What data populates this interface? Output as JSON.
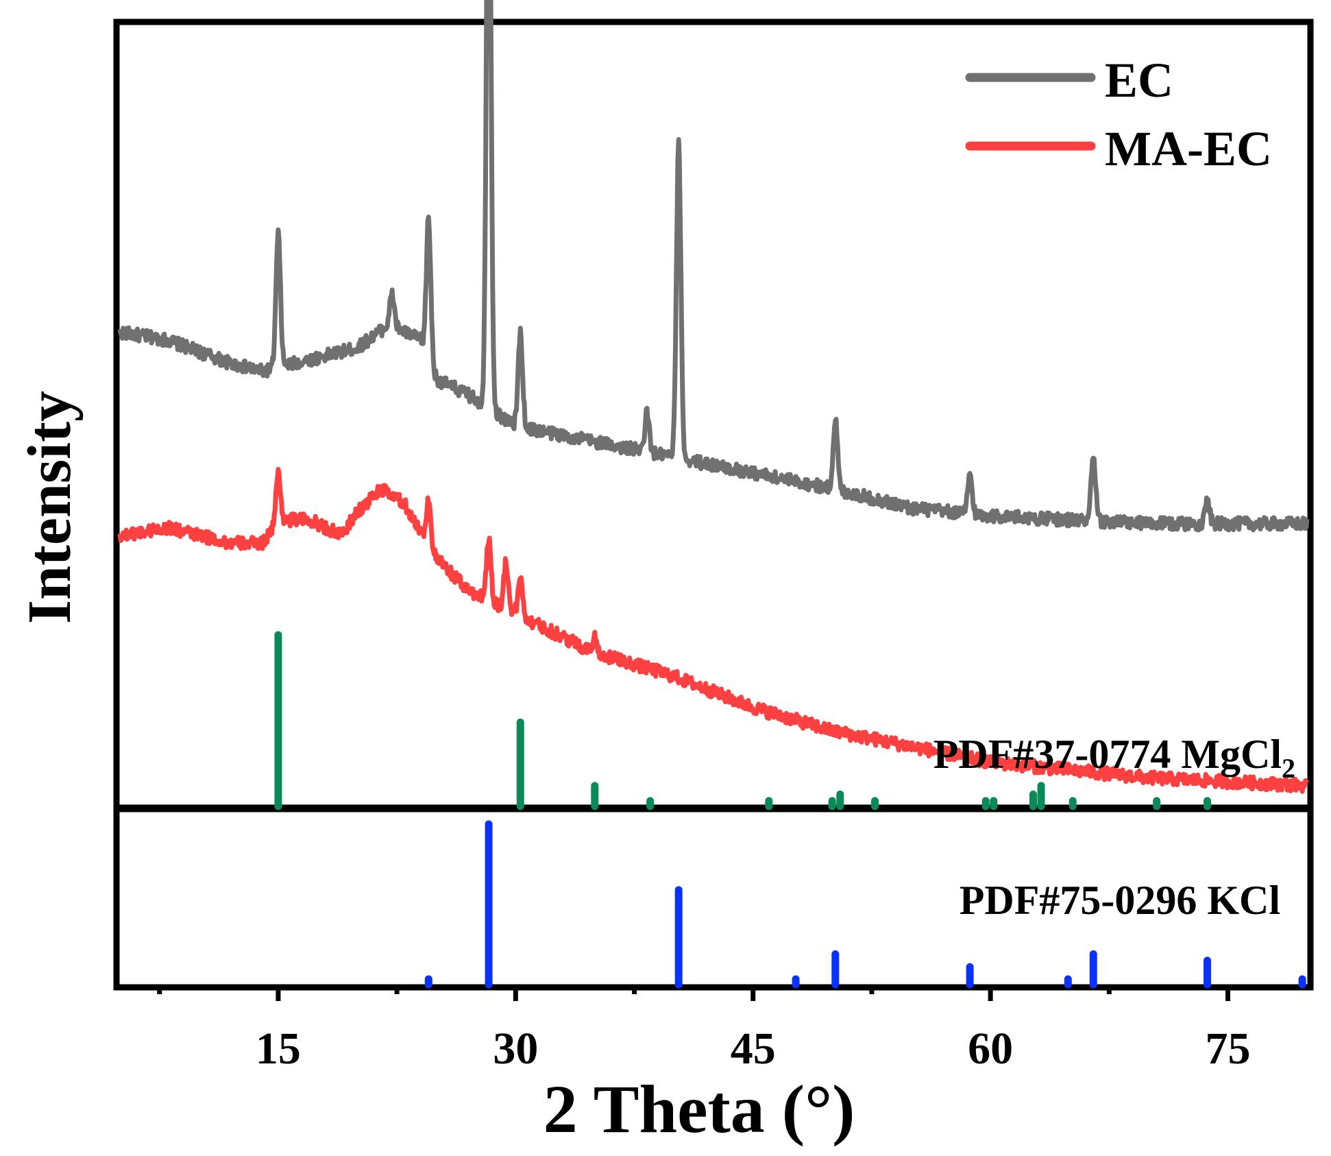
{
  "chart_data": {
    "type": "line",
    "title": "",
    "xlabel": "2 Theta (°)",
    "ylabel": "Intensity",
    "xlim": [
      5,
      80
    ],
    "xticks": [
      15,
      30,
      45,
      60,
      75
    ],
    "xtick_labels": [
      "15",
      "30",
      "45",
      "60",
      "75"
    ],
    "legend_position": "top-right",
    "grid": false,
    "series": [
      {
        "name": "EC",
        "color": "#707070",
        "y_range": [
          0,
          100
        ],
        "background": [
          [
            5,
            61
          ],
          [
            8,
            60
          ],
          [
            12,
            57
          ],
          [
            14,
            56
          ],
          [
            16,
            57
          ],
          [
            18,
            58
          ],
          [
            20,
            59
          ],
          [
            22,
            62
          ],
          [
            24,
            60
          ],
          [
            25,
            55
          ],
          [
            27,
            53
          ],
          [
            30,
            49
          ],
          [
            35,
            47
          ],
          [
            40,
            45
          ],
          [
            45,
            43
          ],
          [
            50,
            41
          ],
          [
            55,
            38.5
          ],
          [
            60,
            37.5
          ],
          [
            65,
            37
          ],
          [
            70,
            36.5
          ],
          [
            80,
            36.5
          ]
        ],
        "peaks": [
          [
            15.0,
            17
          ],
          [
            22.2,
            4
          ],
          [
            24.5,
            18
          ],
          [
            28.3,
            82
          ],
          [
            30.3,
            12
          ],
          [
            38.3,
            5
          ],
          [
            40.3,
            40
          ],
          [
            50.2,
            9
          ],
          [
            58.7,
            5
          ],
          [
            66.5,
            8
          ],
          [
            73.7,
            3
          ]
        ]
      },
      {
        "name": "MA-EC",
        "color": "#ff4040",
        "y_range": [
          0,
          100
        ],
        "background": [
          [
            5,
            35
          ],
          [
            8,
            36
          ],
          [
            12,
            34
          ],
          [
            14,
            34
          ],
          [
            15,
            37
          ],
          [
            17,
            37
          ],
          [
            19,
            35
          ],
          [
            20,
            38
          ],
          [
            21.5,
            41
          ],
          [
            23,
            39
          ],
          [
            25,
            32
          ],
          [
            27,
            28
          ],
          [
            30,
            25
          ],
          [
            35,
            20
          ],
          [
            40,
            17
          ],
          [
            45,
            13
          ],
          [
            50,
            10
          ],
          [
            55,
            8
          ],
          [
            60,
            6
          ],
          [
            65,
            5
          ],
          [
            70,
            4
          ],
          [
            80,
            3
          ]
        ],
        "peaks": [
          [
            15.0,
            6
          ],
          [
            24.5,
            6
          ],
          [
            28.3,
            8
          ],
          [
            29.4,
            6
          ],
          [
            30.3,
            5
          ],
          [
            35.0,
            2
          ]
        ]
      }
    ],
    "reference_patterns": [
      {
        "label": "PDF#37-0774 MgCl",
        "label_subscript": "2",
        "color": "#0a8a58",
        "peaks": [
          [
            15.0,
            100
          ],
          [
            30.3,
            49
          ],
          [
            35.0,
            12
          ],
          [
            38.5,
            2
          ],
          [
            46.0,
            2
          ],
          [
            50.0,
            3
          ],
          [
            50.5,
            7
          ],
          [
            52.7,
            2
          ],
          [
            59.7,
            2
          ],
          [
            60.2,
            2
          ],
          [
            62.7,
            7
          ],
          [
            63.2,
            12
          ],
          [
            65.2,
            2
          ],
          [
            70.5,
            2
          ],
          [
            73.7,
            2
          ]
        ]
      },
      {
        "label": "PDF#75-0296 KCl",
        "color": "#0a32ff",
        "peaks": [
          [
            24.5,
            2
          ],
          [
            28.3,
            100
          ],
          [
            40.3,
            59
          ],
          [
            47.7,
            2
          ],
          [
            50.2,
            19
          ],
          [
            58.7,
            11
          ],
          [
            64.9,
            2
          ],
          [
            66.5,
            19
          ],
          [
            73.7,
            15
          ],
          [
            79.7,
            2
          ]
        ]
      }
    ]
  }
}
